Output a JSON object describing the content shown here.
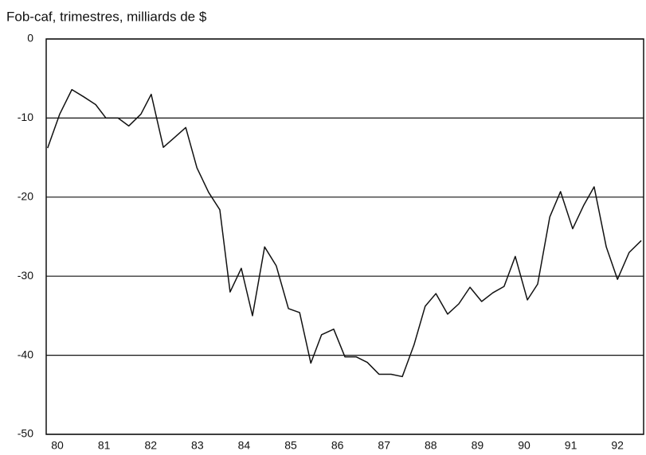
{
  "chart_data": {
    "type": "line",
    "title": "Fob-caf, trimestres, milliards de $",
    "x": [
      1980.29,
      1980.55,
      1980.81,
      1981.06,
      1981.32,
      1981.54,
      1981.8,
      1982.03,
      1982.29,
      1982.51,
      1982.77,
      1983.02,
      1983.25,
      1983.49,
      1983.74,
      1983.98,
      1984.2,
      1984.44,
      1984.68,
      1984.94,
      1985.19,
      1985.45,
      1985.69,
      1985.93,
      1986.16,
      1986.42,
      1986.66,
      1986.9,
      1987.14,
      1987.39,
      1987.65,
      1987.89,
      1988.14,
      1988.38,
      1988.61,
      1988.86,
      1989.1,
      1989.34,
      1989.59,
      1989.83,
      1990.07,
      1990.31,
      1990.57,
      1990.79,
      1991.05,
      1991.28,
      1991.54,
      1991.78,
      1992.0,
      1992.26,
      1992.5,
      1992.75,
      1993.01
    ],
    "series": [
      {
        "color": "#111111",
        "values": [
          -13.8,
          -9.5,
          -6.4,
          -7.3,
          -8.3,
          -10,
          -10,
          -11,
          -9.5,
          -7,
          -13.7,
          -12.4,
          -11.2,
          -16.3,
          -19.4,
          -21.6,
          -32,
          -29,
          -35,
          -26.3,
          -28.7,
          -34.1,
          -34.6,
          -41,
          -37.4,
          -36.7,
          -40.2,
          -40.2,
          -40.9,
          -42.4,
          -42.4,
          -42.7,
          -38.7,
          -33.8,
          -32.2,
          -34.8,
          -33.5,
          -31.4,
          -33.2,
          -32.1,
          -31.3,
          -27.5,
          -33,
          -31,
          -22.5,
          -19.3,
          -24,
          -21,
          -18.7,
          -26.3,
          -30.4,
          -27,
          -25.5
        ]
      }
    ],
    "xlim": [
      1980.26,
      1993.06
    ],
    "xticks": [
      {
        "value": 1980.5,
        "label": "80"
      },
      {
        "value": 1981.5,
        "label": "81"
      },
      {
        "value": 1982.5,
        "label": "82"
      },
      {
        "value": 1983.5,
        "label": "83"
      },
      {
        "value": 1984.5,
        "label": "84"
      },
      {
        "value": 1985.5,
        "label": "85"
      },
      {
        "value": 1986.5,
        "label": "86"
      },
      {
        "value": 1987.5,
        "label": "87"
      },
      {
        "value": 1988.5,
        "label": "88"
      },
      {
        "value": 1989.5,
        "label": "89"
      },
      {
        "value": 1990.5,
        "label": "90"
      },
      {
        "value": 1991.5,
        "label": "91"
      },
      {
        "value": 1992.5,
        "label": "92"
      }
    ],
    "ylim": [
      -50,
      0
    ],
    "yticks": [
      0,
      -10,
      -20,
      -30,
      -40,
      -50
    ],
    "grid": true
  }
}
